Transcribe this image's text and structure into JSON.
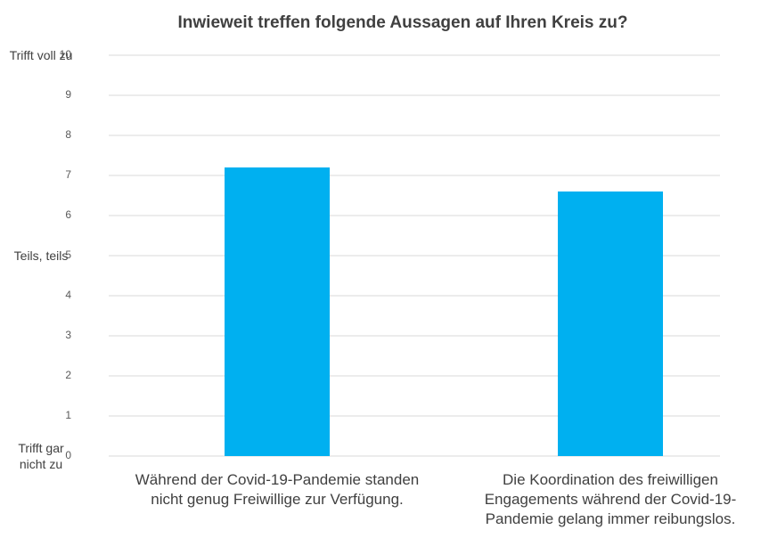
{
  "chart_data": {
    "type": "bar",
    "title": "Inwieweit treffen folgende Aussagen auf Ihren Kreis zu?",
    "categories": [
      "Während der Covid-19-Pandemie standen nicht genug Freiwillige zur Verfügung.",
      "Die Koordination des freiwilligen Engagements während der Covid-19-Pandemie gelang immer reibungslos."
    ],
    "values": [
      7.2,
      6.6
    ],
    "color": "#00b0f0",
    "ylim": [
      0,
      10
    ],
    "yticks": [
      0,
      1,
      2,
      3,
      4,
      5,
      6,
      7,
      8,
      9,
      10
    ],
    "grid": true,
    "y_annotations": [
      {
        "value": 10,
        "label": "Trifft voll zu"
      },
      {
        "value": 5,
        "label": "Teils, teils"
      },
      {
        "value": 0,
        "label": "Trifft gar nicht zu"
      }
    ]
  }
}
